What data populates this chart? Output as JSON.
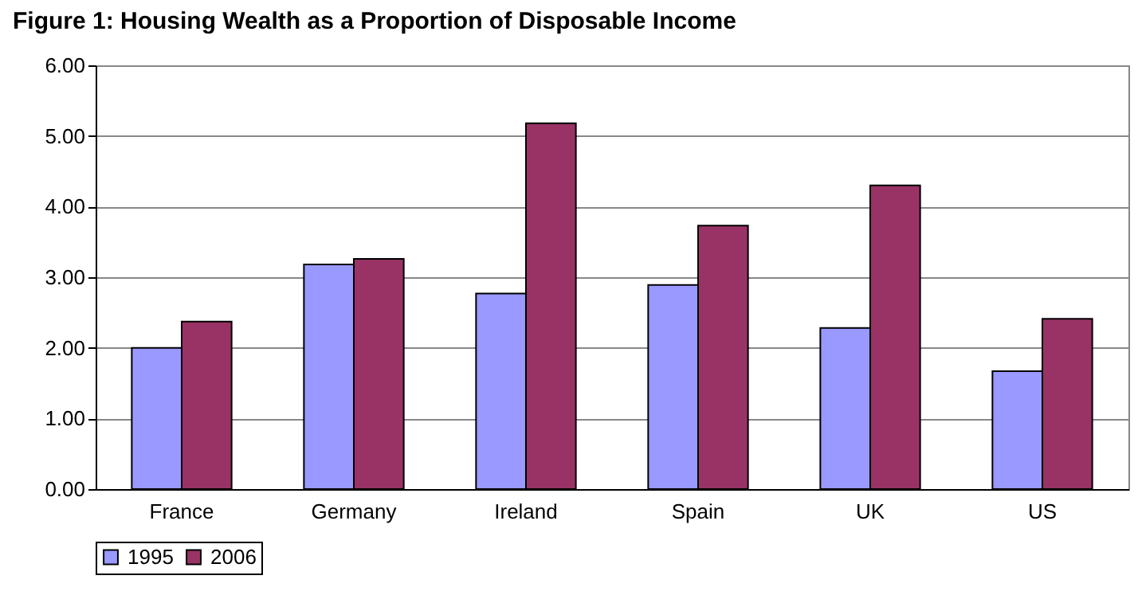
{
  "chart_data": {
    "type": "bar",
    "title": "Figure 1: Housing Wealth as a Proportion of Disposable Income",
    "categories": [
      "France",
      "Germany",
      "Ireland",
      "Spain",
      "UK",
      "US"
    ],
    "series": [
      {
        "name": "1995",
        "color": "#9999ff",
        "values": [
          2.0,
          3.18,
          2.77,
          2.89,
          2.28,
          1.67
        ]
      },
      {
        "name": "2006",
        "color": "#993366",
        "values": [
          2.37,
          3.26,
          5.18,
          3.73,
          4.3,
          2.41
        ]
      }
    ],
    "ylim": [
      0,
      6
    ],
    "yticks": [
      {
        "value": 0,
        "label": "0.00"
      },
      {
        "value": 1,
        "label": "1.00"
      },
      {
        "value": 2,
        "label": "2.00"
      },
      {
        "value": 3,
        "label": "3.00"
      },
      {
        "value": 4,
        "label": "4.00"
      },
      {
        "value": 5,
        "label": "5.00"
      },
      {
        "value": 6,
        "label": "6.00"
      }
    ],
    "grid": "y",
    "legend": "bottom"
  }
}
